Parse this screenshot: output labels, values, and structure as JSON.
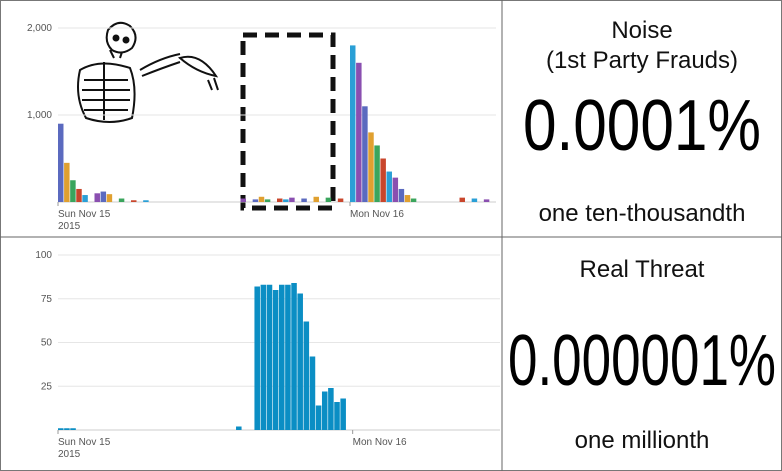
{
  "chart_data": [
    {
      "type": "bar",
      "x": [
        0,
        0.5,
        1,
        1.5,
        2,
        3,
        3.5,
        4,
        5,
        6,
        7,
        15,
        16,
        16.5,
        17,
        18,
        18.5,
        19,
        20,
        21,
        22,
        23,
        24,
        24.5,
        25,
        25.5,
        26,
        26.5,
        27,
        27.5,
        28,
        28.5,
        29,
        33,
        34,
        35
      ],
      "values": [
        900,
        450,
        250,
        150,
        80,
        100,
        120,
        90,
        40,
        20,
        20,
        40,
        30,
        60,
        30,
        40,
        30,
        50,
        40,
        60,
        50,
        40,
        1800,
        1600,
        1100,
        800,
        650,
        500,
        350,
        280,
        150,
        80,
        40,
        50,
        40,
        30
      ],
      "colors": [
        "#5b6abf",
        "#e0a030",
        "#3aa55d",
        "#c9462c",
        "#2a9fd6",
        "#8a4fb0"
      ],
      "xlim": [
        0,
        36
      ],
      "ylim": [
        0,
        2000
      ],
      "xticks": [
        {
          "value": 0,
          "label": "Sun Nov 15"
        },
        {
          "value": 24,
          "label": "Mon Nov 16"
        }
      ],
      "year_label": "2015",
      "yticks": [
        {
          "value": 1000,
          "label": "1,000"
        },
        {
          "value": 2000,
          "label": "2,000"
        }
      ],
      "grid": true
    },
    {
      "type": "bar",
      "x": [
        0,
        0.5,
        1,
        14.5,
        16,
        16.5,
        17,
        17.5,
        18,
        18.5,
        19,
        19.5,
        20,
        20.5,
        21,
        21.5,
        22,
        22.5,
        23
      ],
      "values": [
        1,
        1,
        1,
        2,
        82,
        83,
        83,
        80,
        83,
        83,
        84,
        78,
        62,
        42,
        14,
        22,
        24,
        16,
        18
      ],
      "colors": [
        "#0b8ec4"
      ],
      "xlim": [
        0,
        36
      ],
      "ylim": [
        0,
        100
      ],
      "xticks": [
        {
          "value": 0,
          "label": "Sun Nov 15"
        },
        {
          "value": 24,
          "label": "Mon Nov 16"
        }
      ],
      "year_label": "2015",
      "yticks": [
        25,
        50,
        75,
        100
      ],
      "grid": true
    }
  ],
  "panels": [
    {
      "title_lines": [
        "Noise",
        "(1st Party Frauds)"
      ],
      "big": "0.0001%",
      "caption": "one ten-thousandth"
    },
    {
      "title_lines": [
        "Real Threat"
      ],
      "big": "0.000001%",
      "caption": "one millionth"
    }
  ]
}
